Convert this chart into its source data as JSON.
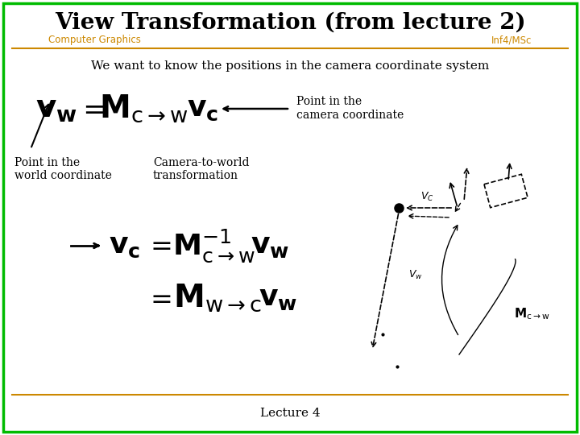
{
  "title": "View Transformation (from lecture 2)",
  "subtitle_left": "Computer Graphics",
  "subtitle_right": "Inf4/MSc",
  "body_text": "We want to know the positions in the camera coordinate system",
  "border_color": "#00bb00",
  "title_color": "#000000",
  "subtitle_color": "#cc8800",
  "separator_color": "#cc8800",
  "bg_color": "#ffffff",
  "footer": "Lecture 4"
}
